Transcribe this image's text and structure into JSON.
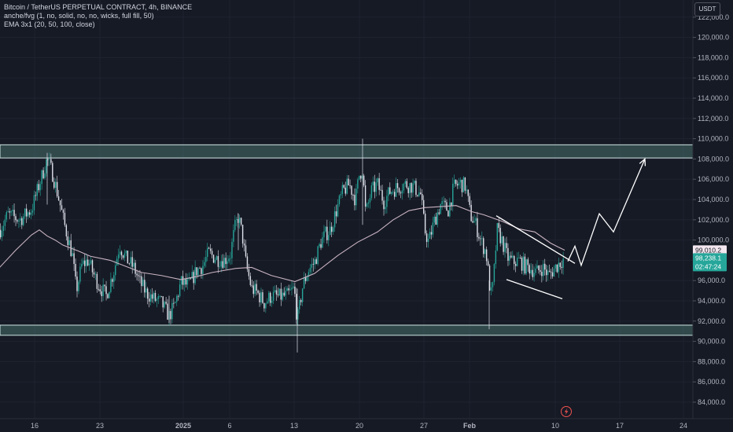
{
  "legend": {
    "symbol_line": "Bitcoin / TetherUS PERPETUAL CONTRACT, 4h, BINANCE",
    "indicator_1": "anche/fvg (1, no, solid, no, no, wicks, full fill, 50)",
    "indicator_2": "EMA 3x1 (20, 50, 100, close)"
  },
  "currency_button": "USDT",
  "colors": {
    "background": "#161a25",
    "up_candle": "#26a69a",
    "down_candle": "#e0e3eb",
    "ema_line": "#c9b4c2",
    "zone_fill": "#3c5a5a",
    "zone_border": "#cfe6e3",
    "drawing": "#ffffff",
    "price_tag_ema": "#f3e6ee",
    "price_tag_last": "#26a69a"
  },
  "bottom_icon": "lightning-bolt-icon",
  "chart_data": {
    "type": "candlestick",
    "timeframe": "4h",
    "x_ticks": [
      "16",
      "23",
      "2025",
      "6",
      "13",
      "20",
      "27",
      "Feb",
      "10",
      "17",
      "24"
    ],
    "y_ticks": [
      "84,000.0",
      "86,000.0",
      "88,000.0",
      "90,000.0",
      "92,000.0",
      "94,000.0",
      "96,000.0",
      "98,000.0",
      "100,000.0",
      "102,000.0",
      "104,000.0",
      "106,000.0",
      "108,000.0",
      "110,000.0",
      "112,000.0",
      "114,000.0",
      "116,000.0",
      "118,000.0",
      "120,000.0",
      "122,000.0"
    ],
    "ylim": [
      83000,
      123500
    ],
    "price_labels": {
      "ema": "99,010.2",
      "last_price": "98,238.1",
      "countdown": "02:47:24"
    },
    "zones": [
      {
        "low": 108100,
        "high": 109400
      },
      {
        "low": 90600,
        "high": 91600
      }
    ],
    "ema_path": [
      [
        -4,
        97000
      ],
      [
        20,
        99000
      ],
      [
        40,
        100500
      ],
      [
        50,
        101000
      ],
      [
        60,
        100400
      ],
      [
        70,
        100000
      ],
      [
        80,
        99500
      ],
      [
        100,
        98900
      ],
      [
        115,
        98400
      ],
      [
        140,
        98000
      ],
      [
        180,
        96800
      ],
      [
        205,
        96500
      ],
      [
        230,
        96100
      ],
      [
        250,
        96400
      ],
      [
        270,
        96800
      ],
      [
        300,
        97200
      ],
      [
        320,
        97300
      ],
      [
        345,
        96500
      ],
      [
        375,
        95900
      ],
      [
        400,
        96700
      ],
      [
        430,
        98500
      ],
      [
        455,
        99800
      ],
      [
        480,
        100800
      ],
      [
        500,
        102000
      ],
      [
        520,
        102900
      ],
      [
        540,
        103200
      ],
      [
        560,
        103300
      ],
      [
        580,
        103400
      ],
      [
        600,
        102800
      ],
      [
        615,
        102500
      ],
      [
        640,
        101800
      ],
      [
        660,
        101100
      ],
      [
        680,
        100800
      ],
      [
        700,
        99700
      ],
      [
        710,
        99300
      ],
      [
        718,
        99000
      ]
    ],
    "anchors": {
      "x0": -4,
      "x1": 718
    },
    "candle_waypoints": [
      [
        0,
        101000
      ],
      [
        10,
        102500
      ],
      [
        25,
        102000
      ],
      [
        40,
        103000
      ],
      [
        52,
        106000
      ],
      [
        60,
        108000
      ],
      [
        67,
        106500
      ],
      [
        75,
        104000
      ],
      [
        82,
        101500
      ],
      [
        92,
        98500
      ],
      [
        97,
        95000
      ],
      [
        104,
        97500
      ],
      [
        112,
        98000
      ],
      [
        118,
        96800
      ],
      [
        126,
        95500
      ],
      [
        135,
        94500
      ],
      [
        145,
        97000
      ],
      [
        152,
        99500
      ],
      [
        160,
        98200
      ],
      [
        170,
        97300
      ],
      [
        178,
        95800
      ],
      [
        186,
        94800
      ],
      [
        195,
        94200
      ],
      [
        205,
        93800
      ],
      [
        215,
        92500
      ],
      [
        222,
        93500
      ],
      [
        230,
        95800
      ],
      [
        240,
        95500
      ],
      [
        250,
        97000
      ],
      [
        258,
        97500
      ],
      [
        265,
        98700
      ],
      [
        275,
        98200
      ],
      [
        285,
        98000
      ],
      [
        293,
        98600
      ],
      [
        298,
        101000
      ],
      [
        303,
        102300
      ],
      [
        308,
        100500
      ],
      [
        313,
        97500
      ],
      [
        320,
        95200
      ],
      [
        327,
        94800
      ],
      [
        336,
        93800
      ],
      [
        345,
        94500
      ],
      [
        355,
        94400
      ],
      [
        365,
        94500
      ],
      [
        374,
        95200
      ],
      [
        378,
        92000
      ],
      [
        385,
        95500
      ],
      [
        392,
        97000
      ],
      [
        400,
        97800
      ],
      [
        408,
        99800
      ],
      [
        414,
        100600
      ],
      [
        420,
        101000
      ],
      [
        428,
        103000
      ],
      [
        436,
        104800
      ],
      [
        444,
        105500
      ],
      [
        452,
        104000
      ],
      [
        457,
        106500
      ],
      [
        461,
        107000
      ],
      [
        465,
        102500
      ],
      [
        472,
        104800
      ],
      [
        480,
        105500
      ],
      [
        488,
        103800
      ],
      [
        496,
        104800
      ],
      [
        505,
        105200
      ],
      [
        515,
        105500
      ],
      [
        525,
        105300
      ],
      [
        535,
        104500
      ],
      [
        540,
        101000
      ],
      [
        545,
        99800
      ],
      [
        552,
        101800
      ],
      [
        560,
        103500
      ],
      [
        570,
        103000
      ],
      [
        577,
        105200
      ],
      [
        585,
        105600
      ],
      [
        592,
        105300
      ],
      [
        598,
        102500
      ],
      [
        605,
        101500
      ],
      [
        612,
        99800
      ],
      [
        618,
        98800
      ],
      [
        624,
        94500
      ],
      [
        627,
        95500
      ],
      [
        632,
        101000
      ],
      [
        638,
        100000
      ],
      [
        645,
        98300
      ],
      [
        652,
        97800
      ],
      [
        660,
        98000
      ],
      [
        668,
        97400
      ],
      [
        675,
        97200
      ],
      [
        682,
        96800
      ],
      [
        690,
        97300
      ],
      [
        698,
        96500
      ],
      [
        705,
        97200
      ],
      [
        712,
        97800
      ],
      [
        718,
        98238
      ]
    ],
    "drawings": {
      "wedge_upper": [
        [
          631,
          102400
        ],
        [
          731,
          97700
        ]
      ],
      "wedge_lower": [
        [
          644,
          96100
        ],
        [
          715,
          94200
        ]
      ],
      "projection_arrow": [
        [
          722,
          97900
        ],
        [
          731,
          99400
        ],
        [
          739,
          97500
        ],
        [
          762,
          102600
        ],
        [
          780,
          100800
        ],
        [
          820,
          108000
        ]
      ]
    }
  }
}
